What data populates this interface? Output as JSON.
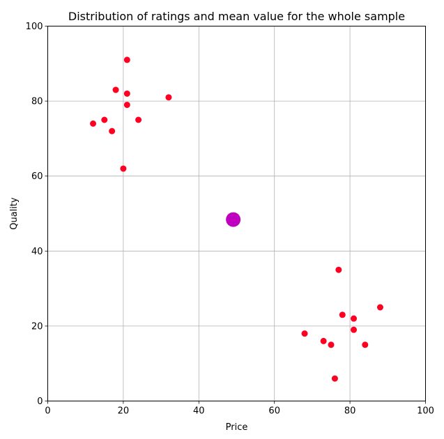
{
  "chart_data": {
    "type": "scatter",
    "title": "Distribution of ratings and mean value for the whole sample",
    "xlabel": "Price",
    "ylabel": "Quality",
    "xlim": [
      0,
      100
    ],
    "ylim": [
      0,
      100
    ],
    "xticks": [
      0,
      20,
      40,
      60,
      80,
      100
    ],
    "yticks": [
      0,
      20,
      40,
      60,
      80,
      100
    ],
    "grid": true,
    "series": [
      {
        "color": "#ff0022",
        "points": [
          {
            "x": 21,
            "y": 91
          },
          {
            "x": 18,
            "y": 83
          },
          {
            "x": 21,
            "y": 82
          },
          {
            "x": 32,
            "y": 81
          },
          {
            "x": 21,
            "y": 79
          },
          {
            "x": 15,
            "y": 75
          },
          {
            "x": 24,
            "y": 75
          },
          {
            "x": 12,
            "y": 74
          },
          {
            "x": 17,
            "y": 72
          },
          {
            "x": 20,
            "y": 62
          },
          {
            "x": 77,
            "y": 35
          },
          {
            "x": 88,
            "y": 25
          },
          {
            "x": 78,
            "y": 23
          },
          {
            "x": 81,
            "y": 22
          },
          {
            "x": 81,
            "y": 19
          },
          {
            "x": 68,
            "y": 18
          },
          {
            "x": 73,
            "y": 16
          },
          {
            "x": 75,
            "y": 15
          },
          {
            "x": 84,
            "y": 15
          },
          {
            "x": 76,
            "y": 6
          }
        ]
      },
      {
        "color": "#bf00bf",
        "points": [
          {
            "x": 49.1,
            "y": 48.4
          }
        ]
      }
    ]
  }
}
